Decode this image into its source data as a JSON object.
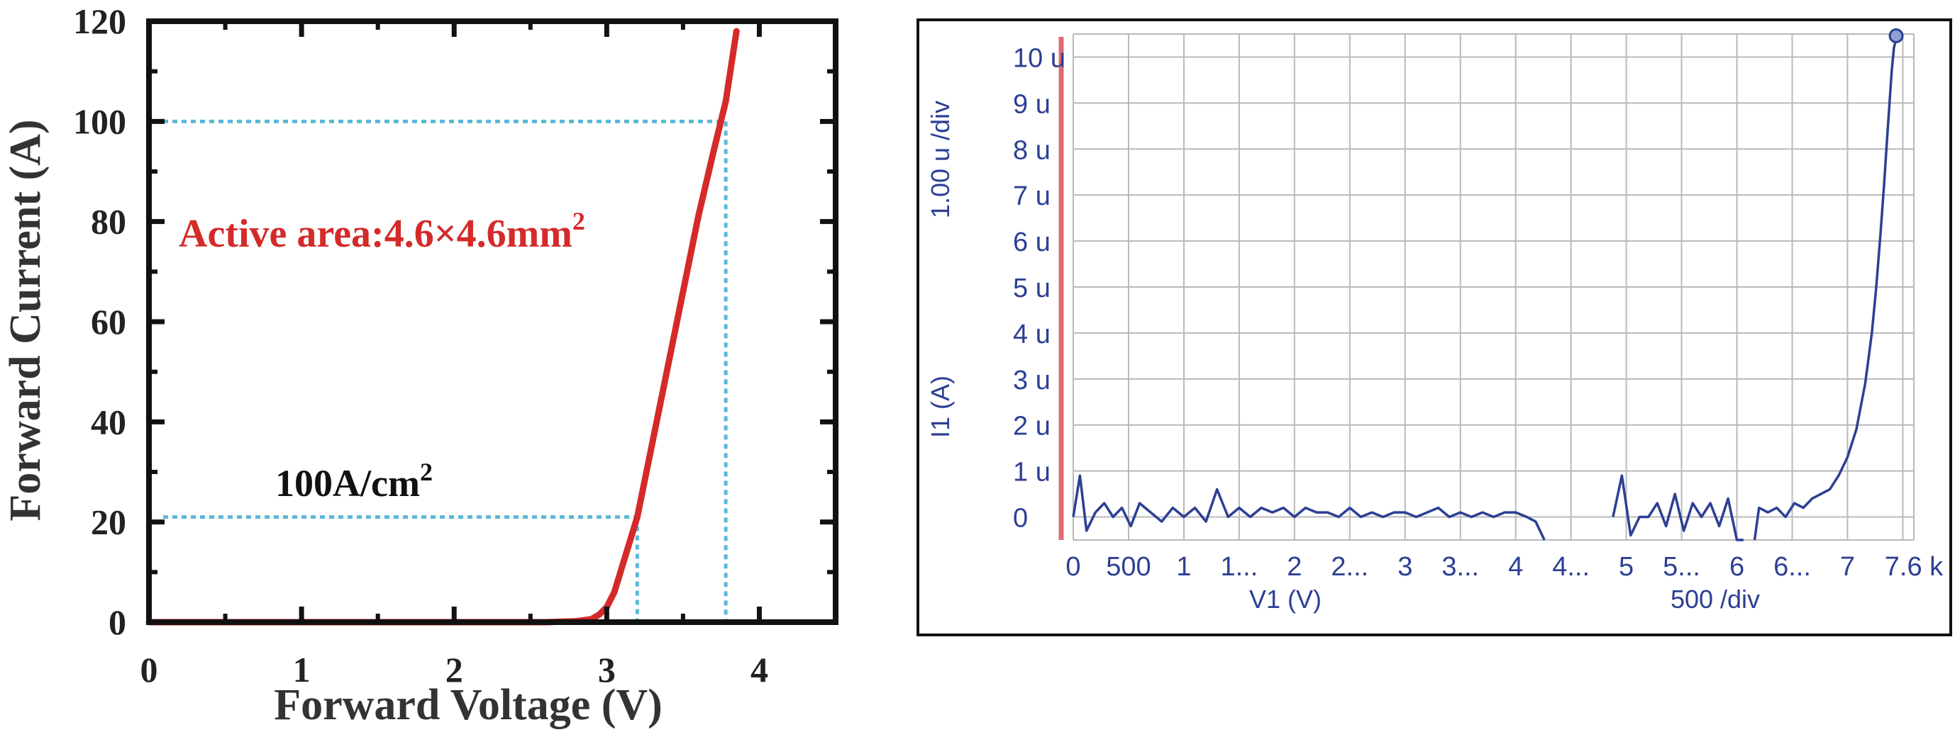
{
  "charts_meta": {
    "left": {
      "annotation_area": "Active area:4.6×4.6mm",
      "annotation_area_sup": "2",
      "annotation_density": "100A/cm",
      "annotation_density_sup": "2",
      "colors": {
        "curve": "#d42a2a",
        "guide": "#5bb8d8",
        "frame": "#111111"
      }
    },
    "right": {
      "left_axis_label": "I1 (A)",
      "left_axis_scale": "1.00 u /div",
      "bottom_axis_label": "V1 (V)",
      "bottom_axis_scale": "500  /div",
      "colors": {
        "trace": "#2d3f94",
        "grid": "#b9b9b9",
        "marker": "#e06a74",
        "frame": "#111111"
      }
    }
  },
  "chart_data": [
    {
      "type": "line",
      "title": "",
      "xlabel": "Forward Voltage (V)",
      "ylabel": "Forward Current (A)",
      "xlim": [
        0,
        4.5
      ],
      "ylim": [
        0,
        120
      ],
      "x_ticks": [
        "0",
        "1",
        "2",
        "3",
        "4"
      ],
      "y_ticks": [
        "0",
        "20",
        "40",
        "60",
        "80",
        "100",
        "120"
      ],
      "grid": false,
      "series": [
        {
          "x": [
            0,
            1.0,
            2.0,
            2.6,
            2.8,
            2.9,
            2.95,
            3.0,
            3.05,
            3.1,
            3.2,
            3.3,
            3.4,
            3.5,
            3.6,
            3.7,
            3.78,
            3.85
          ],
          "y": [
            0,
            0,
            0,
            0,
            0.2,
            0.6,
            1.5,
            3,
            6,
            11,
            21,
            36,
            51,
            66,
            81,
            94,
            104,
            118
          ]
        }
      ],
      "guides": [
        {
          "x": 3.2,
          "y": 21
        },
        {
          "x": 3.78,
          "y": 100
        }
      ]
    },
    {
      "type": "line",
      "title": "",
      "xlabel": "V1 (V)",
      "ylabel": "I1 (A)",
      "xlim": [
        0,
        7600
      ],
      "ylim": [
        -0.5,
        10.5
      ],
      "x_ticks": [
        "0",
        "500",
        "1",
        "1...",
        "2",
        "2...",
        "3",
        "3...",
        "4",
        "4...",
        "5",
        "5...",
        "6",
        "6...",
        "7",
        "7.6 k"
      ],
      "y_ticks": [
        "0",
        "1 u",
        "2 u",
        "3 u",
        "4 u",
        "5 u",
        "6 u",
        "7 u",
        "8 u",
        "9 u",
        "10 u"
      ],
      "grid": true,
      "series": [
        {
          "x": [
            0,
            60,
            120,
            200,
            280,
            360,
            440,
            520,
            600,
            700,
            800,
            900,
            1000,
            1100,
            1200,
            1300,
            1400,
            1500,
            1600,
            1700,
            1800,
            1900,
            2000,
            2100,
            2200,
            2300,
            2400,
            2500,
            2600,
            2700,
            2800,
            2900,
            3000,
            3100,
            3200,
            3300,
            3400,
            3500,
            3600,
            3700,
            3800,
            3900,
            4000,
            4100,
            4180,
            4260
          ],
          "y": [
            0,
            0.9,
            -0.3,
            0.1,
            0.3,
            0.0,
            0.2,
            -0.2,
            0.3,
            0.1,
            -0.1,
            0.2,
            0.0,
            0.2,
            -0.1,
            0.6,
            0.0,
            0.2,
            0.0,
            0.2,
            0.1,
            0.2,
            0.0,
            0.2,
            0.1,
            0.1,
            0.0,
            0.2,
            0.0,
            0.1,
            0.0,
            0.1,
            0.1,
            0.0,
            0.1,
            0.2,
            0.0,
            0.1,
            0.0,
            0.1,
            0.0,
            0.1,
            0.1,
            0.0,
            -0.1,
            -0.5
          ]
        },
        {
          "x": [
            4880,
            4960,
            5040,
            5120,
            5200,
            5280,
            5360,
            5440,
            5520,
            5600,
            5680,
            5760,
            5840,
            5920,
            6000,
            6060
          ],
          "y": [
            0.0,
            0.9,
            -0.4,
            0.0,
            0.0,
            0.3,
            -0.2,
            0.5,
            -0.3,
            0.3,
            0.0,
            0.3,
            -0.2,
            0.4,
            -0.5,
            -0.5
          ]
        },
        {
          "x": [
            6160,
            6200,
            6280,
            6360,
            6440,
            6520,
            6600,
            6680,
            6760,
            6840,
            6920,
            7000,
            7080,
            7160,
            7220,
            7260,
            7300,
            7330,
            7360,
            7380,
            7400,
            7420,
            7440
          ],
          "y": [
            -0.5,
            0.2,
            0.1,
            0.2,
            0.0,
            0.3,
            0.2,
            0.4,
            0.5,
            0.6,
            0.9,
            1.3,
            1.9,
            2.9,
            4.0,
            5.0,
            6.2,
            7.2,
            8.3,
            9.0,
            9.7,
            10.2,
            10.4
          ]
        }
      ]
    }
  ]
}
